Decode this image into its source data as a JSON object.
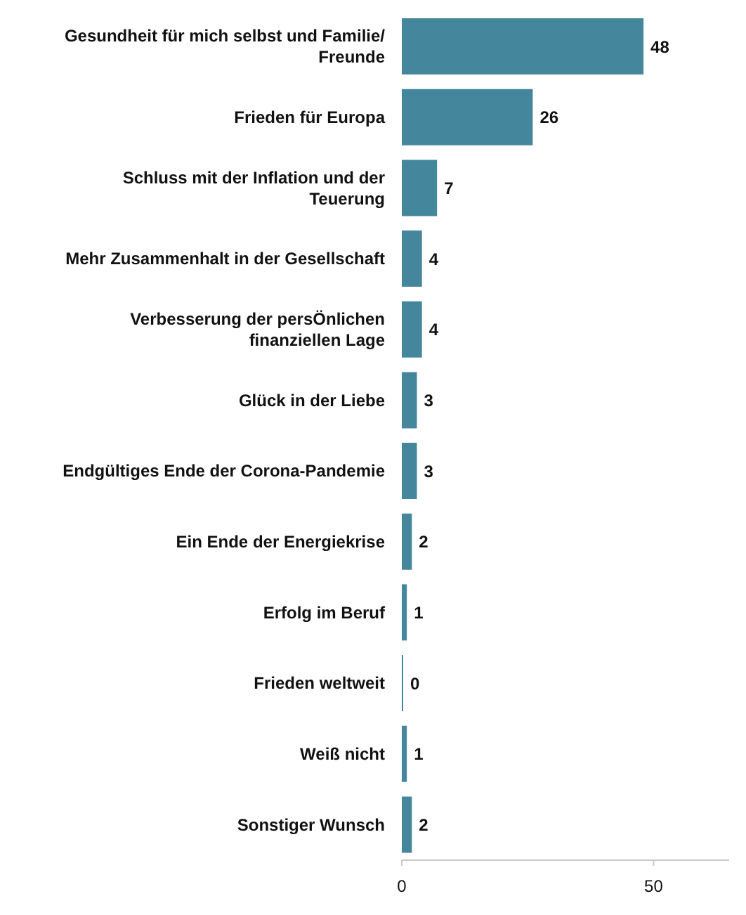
{
  "chart_data": {
    "type": "bar",
    "orientation": "horizontal",
    "categories": [
      "Gesundheit für mich selbst und Familie/Freunde",
      "Frieden für Europa",
      "Schluss mit der Inflation und der Teuerung",
      "Mehr Zusammenhalt in der Gesellschaft",
      "Verbesserung der persÖnlichen finanziellen Lage",
      "Glück in der Liebe",
      "Endgültiges Ende der Corona-Pandemie",
      "Ein Ende der Energiekrise",
      "Erfolg im Beruf",
      "Frieden weltweit",
      "Weiß nicht",
      "Sonstiger Wunsch"
    ],
    "values": [
      48,
      26,
      7,
      4,
      4,
      3,
      3,
      2,
      1,
      0,
      1,
      2
    ],
    "color": "#44869b",
    "xlim": [
      0,
      65
    ],
    "xticks": [
      0,
      50
    ],
    "data_labels": true,
    "grid": false,
    "legend": false
  }
}
